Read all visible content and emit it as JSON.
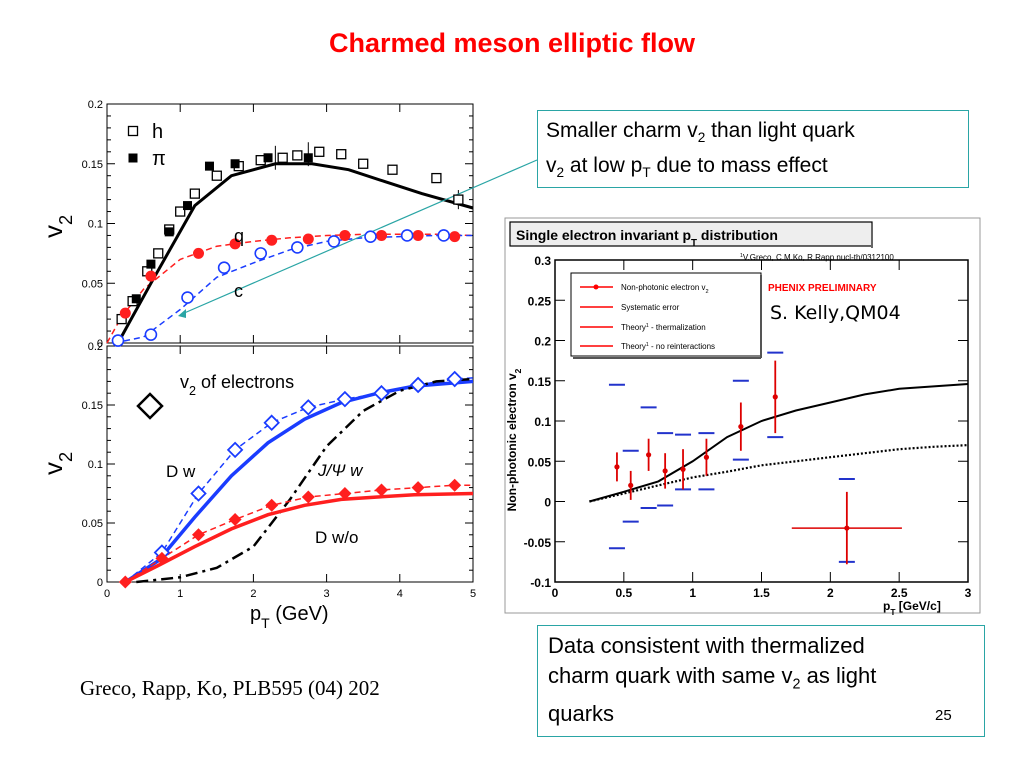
{
  "slide_title": "Charmed meson elliptic flow",
  "citation": "Greco, Rapp, Ko, PLB595 (04) 202",
  "speaker_credit": "S. Kelly,QM04",
  "page_number": "25",
  "callout_top": {
    "l1a": "Smaller charm v",
    "l1sub": "2",
    "l1b": " than light quark",
    "l2a": "v",
    "l2sub": "2",
    "l2b": " at low p",
    "l2sub2": "T",
    "l2c": " due to mass effect"
  },
  "callout_bottom": {
    "l1": "Data consistent with thermalized",
    "l2a": "charm quark with same v",
    "l2sub": "2",
    "l2b": " as light",
    "l3": "quarks"
  },
  "chart_data": [
    {
      "type": "scatter",
      "panel": "top-left",
      "xlim": [
        0,
        5
      ],
      "ylim": [
        0,
        0.2
      ],
      "yticks": [
        "0",
        "0.05",
        "0.1",
        "0.15",
        "0.2"
      ],
      "ylabel": "v",
      "ylabel_sub": "2",
      "legend": [
        {
          "symbol": "open-square",
          "label": "h"
        },
        {
          "symbol": "filled-square",
          "label": "π"
        }
      ],
      "annotations": {
        "quark": "q",
        "charm": "c"
      },
      "series": [
        {
          "name": "h",
          "marker": "open-square",
          "points": [
            [
              0.2,
              0.02
            ],
            [
              0.35,
              0.035
            ],
            [
              0.55,
              0.06
            ],
            [
              0.7,
              0.075
            ],
            [
              0.85,
              0.095
            ],
            [
              1.0,
              0.11
            ],
            [
              1.2,
              0.125
            ],
            [
              1.5,
              0.14
            ],
            [
              1.8,
              0.148
            ],
            [
              2.1,
              0.153
            ],
            [
              2.4,
              0.155
            ],
            [
              2.6,
              0.157
            ],
            [
              2.9,
              0.16
            ],
            [
              3.2,
              0.158
            ],
            [
              3.5,
              0.15
            ],
            [
              3.9,
              0.145
            ],
            [
              4.5,
              0.138
            ],
            [
              4.8,
              0.12
            ]
          ]
        },
        {
          "name": "π",
          "marker": "filled-square",
          "points": [
            [
              0.4,
              0.037
            ],
            [
              0.6,
              0.066
            ],
            [
              0.85,
              0.093
            ],
            [
              1.1,
              0.115
            ],
            [
              1.4,
              0.148
            ],
            [
              1.75,
              0.15
            ],
            [
              2.2,
              0.155
            ],
            [
              2.75,
              0.155
            ]
          ]
        },
        {
          "name": "q",
          "style": "red-dashed-filled-circle",
          "curve": [
            [
              0,
              0
            ],
            [
              0.2,
              0.022
            ],
            [
              0.5,
              0.045
            ],
            [
              1,
              0.07
            ],
            [
              1.5,
              0.081
            ],
            [
              2,
              0.085
            ],
            [
              2.5,
              0.088
            ],
            [
              3,
              0.09
            ],
            [
              3.5,
              0.091
            ],
            [
              4,
              0.091
            ],
            [
              4.5,
              0.091
            ],
            [
              5,
              0.09
            ]
          ],
          "points": [
            [
              0.25,
              0.025
            ],
            [
              0.6,
              0.056
            ],
            [
              1.25,
              0.075
            ],
            [
              1.75,
              0.083
            ],
            [
              2.25,
              0.086
            ],
            [
              2.75,
              0.087
            ],
            [
              3.25,
              0.09
            ],
            [
              3.75,
              0.09
            ],
            [
              4.25,
              0.09
            ],
            [
              4.75,
              0.089
            ]
          ]
        },
        {
          "name": "c",
          "style": "blue-dashed-open-circle",
          "curve": [
            [
              0.1,
              0
            ],
            [
              0.5,
              0.005
            ],
            [
              1,
              0.028
            ],
            [
              1.5,
              0.055
            ],
            [
              2,
              0.067
            ],
            [
              2.5,
              0.078
            ],
            [
              3,
              0.085
            ],
            [
              3.5,
              0.088
            ],
            [
              4,
              0.089
            ],
            [
              4.5,
              0.09
            ],
            [
              5,
              0.09
            ]
          ],
          "points": [
            [
              0.15,
              0.002
            ],
            [
              0.6,
              0.007
            ],
            [
              1.1,
              0.038
            ],
            [
              1.6,
              0.063
            ],
            [
              2.1,
              0.075
            ],
            [
              2.6,
              0.08
            ],
            [
              3.1,
              0.085
            ],
            [
              3.6,
              0.089
            ],
            [
              4.1,
              0.09
            ],
            [
              4.6,
              0.09
            ]
          ]
        },
        {
          "name": "hydro",
          "style": "black-solid",
          "curve": [
            [
              0.15,
              0
            ],
            [
              0.6,
              0.05
            ],
            [
              1.2,
              0.115
            ],
            [
              1.7,
              0.14
            ],
            [
              2.3,
              0.15
            ],
            [
              2.8,
              0.15
            ],
            [
              3.3,
              0.145
            ],
            [
              3.8,
              0.135
            ],
            [
              4.3,
              0.125
            ],
            [
              5,
              0.113
            ]
          ]
        }
      ]
    },
    {
      "type": "scatter",
      "panel": "bottom-left",
      "xlim": [
        0,
        5
      ],
      "ylim": [
        0,
        0.2
      ],
      "xticks": [
        "0",
        "1",
        "2",
        "3",
        "4",
        "5"
      ],
      "yticks": [
        "0",
        "0.05",
        "0.1",
        "0.15",
        "0.2"
      ],
      "xlabel": "p",
      "xlabel_sub": "T",
      "xlabel_unit": " (GeV)",
      "ylabel": "v",
      "ylabel_sub": "2",
      "legend_text": {
        "prefix": "v",
        "sub": "2",
        "suffix": " of electrons"
      },
      "annotations": {
        "dw": "D w",
        "jpsi": "J/Ψ w",
        "dwo": "D w/o"
      },
      "series": [
        {
          "name": "D w",
          "style": "blue-solid",
          "curve": [
            [
              0.25,
              0
            ],
            [
              0.7,
              0.018
            ],
            [
              1.2,
              0.055
            ],
            [
              1.7,
              0.09
            ],
            [
              2.2,
              0.118
            ],
            [
              2.7,
              0.138
            ],
            [
              3.2,
              0.152
            ],
            [
              3.7,
              0.16
            ],
            [
              4.2,
              0.166
            ],
            [
              5,
              0.17
            ]
          ]
        },
        {
          "name": "D w data",
          "style": "blue-dashed-open-diamond",
          "curve": [
            [
              0.25,
              0
            ],
            [
              0.75,
              0.025
            ],
            [
              1.25,
              0.075
            ],
            [
              1.75,
              0.112
            ],
            [
              2.25,
              0.135
            ],
            [
              2.75,
              0.148
            ],
            [
              3.25,
              0.155
            ],
            [
              3.75,
              0.16
            ],
            [
              4.25,
              0.167
            ],
            [
              4.75,
              0.172
            ],
            [
              5,
              0.173
            ]
          ],
          "points": [
            [
              0.75,
              0.025
            ],
            [
              1.25,
              0.075
            ],
            [
              1.75,
              0.112
            ],
            [
              2.25,
              0.135
            ],
            [
              2.75,
              0.148
            ],
            [
              3.25,
              0.155
            ],
            [
              3.75,
              0.16
            ],
            [
              4.25,
              0.167
            ],
            [
              4.75,
              0.172
            ]
          ]
        },
        {
          "name": "J/Ψ w",
          "style": "black-dashdot",
          "curve": [
            [
              0.4,
              0
            ],
            [
              1,
              0.004
            ],
            [
              1.5,
              0.012
            ],
            [
              2,
              0.03
            ],
            [
              2.5,
              0.07
            ],
            [
              3,
              0.115
            ],
            [
              3.5,
              0.145
            ],
            [
              4,
              0.162
            ],
            [
              4.5,
              0.17
            ],
            [
              5,
              0.172
            ]
          ]
        },
        {
          "name": "D w/o",
          "style": "red-solid",
          "curve": [
            [
              0.25,
              0
            ],
            [
              0.7,
              0.014
            ],
            [
              1.2,
              0.03
            ],
            [
              1.7,
              0.045
            ],
            [
              2.2,
              0.057
            ],
            [
              2.7,
              0.065
            ],
            [
              3.2,
              0.07
            ],
            [
              3.7,
              0.072
            ],
            [
              4.2,
              0.074
            ],
            [
              5,
              0.075
            ]
          ]
        },
        {
          "name": "D w/o data",
          "style": "red-dashed-filled-diamond",
          "curve": [
            [
              0.25,
              0
            ],
            [
              0.75,
              0.02
            ],
            [
              1.25,
              0.04
            ],
            [
              1.75,
              0.053
            ],
            [
              2.25,
              0.065
            ],
            [
              2.75,
              0.072
            ],
            [
              3.25,
              0.075
            ],
            [
              3.75,
              0.078
            ],
            [
              4.25,
              0.08
            ],
            [
              4.75,
              0.082
            ],
            [
              5,
              0.082
            ]
          ],
          "points": [
            [
              0.25,
              0
            ],
            [
              0.75,
              0.02
            ],
            [
              1.25,
              0.04
            ],
            [
              1.75,
              0.053
            ],
            [
              2.25,
              0.065
            ],
            [
              2.75,
              0.072
            ],
            [
              3.25,
              0.075
            ],
            [
              3.75,
              0.078
            ],
            [
              4.25,
              0.08
            ],
            [
              4.75,
              0.082
            ]
          ]
        }
      ]
    },
    {
      "type": "scatter",
      "panel": "right",
      "title": "Single electron invariant p",
      "title_sub": "T",
      "title_suffix": " distribution",
      "reference": "V.Greco, C.M.Ko, R.Rapp nucl-th/0312100",
      "reference_sup": "1",
      "experiment_label": "PHENIX PRELIMINARY",
      "xlim": [
        0,
        3
      ],
      "ylim": [
        -0.1,
        0.3
      ],
      "xticks": [
        "0",
        "0.5",
        "1",
        "1.5",
        "2",
        "2.5",
        "3"
      ],
      "yticks": [
        "-0.1",
        "-0.05",
        "0",
        "0.05",
        "0.1",
        "0.15",
        "0.2",
        "0.25",
        "0.3"
      ],
      "xlabel": "p",
      "xlabel_sub": "T",
      "xlabel_unit": " [GeV/c]",
      "ylabel": "Non-photonic electron v",
      "ylabel_sub": "2",
      "legend": [
        {
          "label": "Non-photonic electron v",
          "sub": "2",
          "style": "red-point"
        },
        {
          "label": "Systematic error",
          "style": "red-line"
        },
        {
          "label": " - thermalization",
          "prefix": "Theory",
          "sup": "1",
          "style": "red-line"
        },
        {
          "label": " - no reinteractions",
          "prefix": "Theory",
          "sup": "1",
          "style": "red-line"
        }
      ],
      "data_points": [
        {
          "x": 0.45,
          "y": 0.043,
          "err": 0.018,
          "sys_lo": -0.058,
          "sys_hi": 0.145
        },
        {
          "x": 0.55,
          "y": 0.02,
          "err": 0.018,
          "sys_lo": -0.025,
          "sys_hi": 0.063
        },
        {
          "x": 0.68,
          "y": 0.058,
          "err": 0.02,
          "sys_lo": -0.008,
          "sys_hi": 0.117
        },
        {
          "x": 0.8,
          "y": 0.038,
          "err": 0.022,
          "sys_lo": -0.005,
          "sys_hi": 0.085
        },
        {
          "x": 0.93,
          "y": 0.04,
          "err": 0.025,
          "sys_lo": 0.015,
          "sys_hi": 0.083
        },
        {
          "x": 1.1,
          "y": 0.055,
          "err": 0.023,
          "sys_lo": 0.015,
          "sys_hi": 0.085
        },
        {
          "x": 1.35,
          "y": 0.093,
          "err": 0.03,
          "sys_lo": 0.052,
          "sys_hi": 0.15
        },
        {
          "x": 1.6,
          "y": 0.13,
          "err": 0.045,
          "sys_lo": 0.08,
          "sys_hi": 0.185
        },
        {
          "x": 2.12,
          "y": -0.033,
          "err": 0.045,
          "xerr": 0.4,
          "sys_lo": -0.075,
          "sys_hi": 0.028
        }
      ],
      "theory_thermalization": [
        [
          0.25,
          0
        ],
        [
          0.5,
          0.012
        ],
        [
          0.75,
          0.025
        ],
        [
          1,
          0.05
        ],
        [
          1.25,
          0.08
        ],
        [
          1.5,
          0.1
        ],
        [
          1.75,
          0.113
        ],
        [
          2,
          0.123
        ],
        [
          2.25,
          0.133
        ],
        [
          2.5,
          0.14
        ],
        [
          2.75,
          0.143
        ],
        [
          3,
          0.146
        ]
      ],
      "theory_no_reinteractions": [
        [
          0.25,
          0
        ],
        [
          0.5,
          0.01
        ],
        [
          0.75,
          0.02
        ],
        [
          1,
          0.03
        ],
        [
          1.25,
          0.037
        ],
        [
          1.5,
          0.045
        ],
        [
          1.75,
          0.05
        ],
        [
          2,
          0.055
        ],
        [
          2.25,
          0.06
        ],
        [
          2.5,
          0.065
        ],
        [
          2.75,
          0.068
        ],
        [
          3,
          0.07
        ]
      ]
    }
  ]
}
